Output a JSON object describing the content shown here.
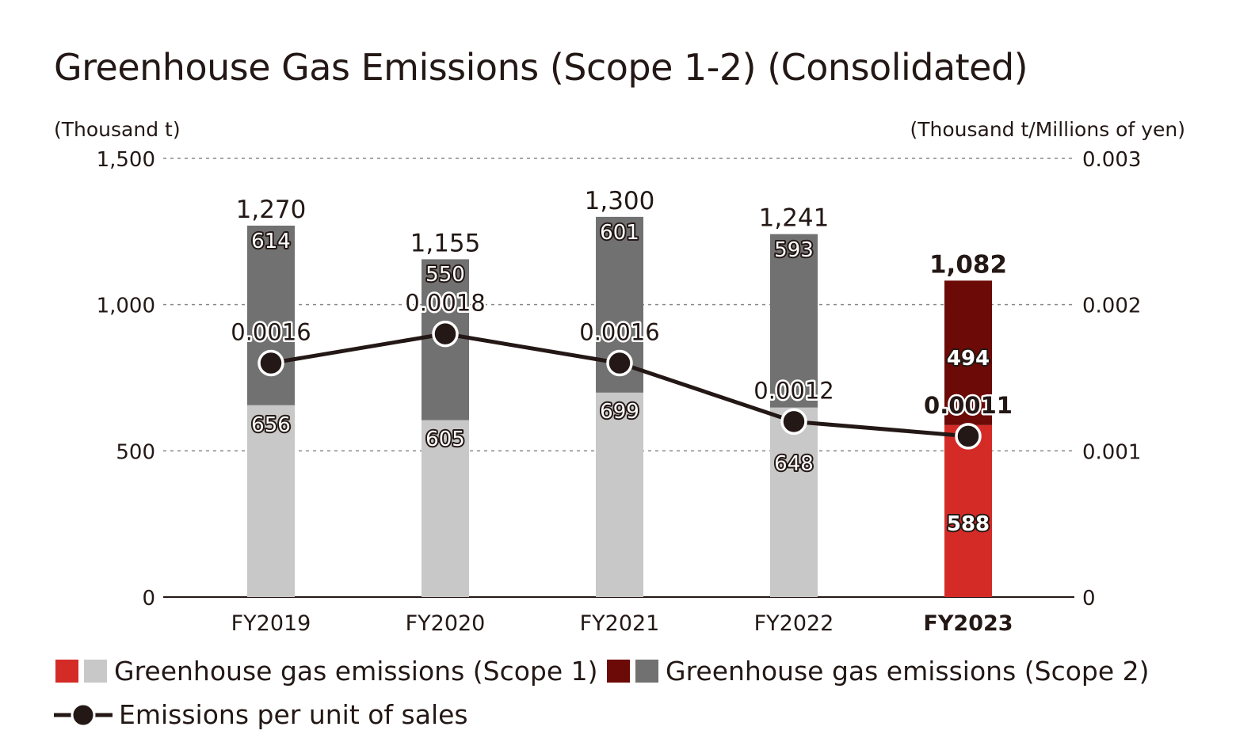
{
  "chart_data": {
    "type": "bar",
    "title": "Greenhouse Gas Emissions (Scope 1-2) (Consolidated)",
    "y_left_label": "(Thousand t)",
    "y_right_label": "(Thousand t/Millions of yen)",
    "ylim_left": [
      0,
      1500
    ],
    "ylim_right": [
      0,
      0.003
    ],
    "y_left_ticks": [
      "0",
      "500",
      "1,000",
      "1,500"
    ],
    "y_right_ticks": [
      "0",
      "0.001",
      "0.002",
      "0.003"
    ],
    "grid": "dashed horizontal",
    "categories": [
      "FY2019",
      "FY2020",
      "FY2021",
      "FY2022",
      "FY2023"
    ],
    "highlight_category": "FY2023",
    "series": [
      {
        "name": "Greenhouse gas emissions (Scope 1)",
        "kind": "stacked-bar",
        "axis": "left",
        "values": [
          656,
          605,
          699,
          648,
          588
        ],
        "value_labels": [
          "656",
          "605",
          "699",
          "648",
          "588"
        ]
      },
      {
        "name": "Greenhouse gas emissions (Scope 2)",
        "kind": "stacked-bar",
        "axis": "left",
        "values": [
          614,
          550,
          601,
          593,
          494
        ],
        "value_labels": [
          "614",
          "550",
          "601",
          "593",
          "494"
        ]
      },
      {
        "name": "Emissions per unit of sales",
        "kind": "line",
        "axis": "right",
        "values": [
          0.0016,
          0.0018,
          0.0016,
          0.0012,
          0.0011
        ],
        "value_labels": [
          "0.0016",
          "0.0018",
          "0.0016",
          "0.0012",
          "0.0011"
        ]
      }
    ],
    "totals": [
      1270,
      1155,
      1300,
      1241,
      1082
    ],
    "total_labels": [
      "1,270",
      "1,155",
      "1,300",
      "1,241",
      "1,082"
    ],
    "legend": {
      "placement": "bottom",
      "items": [
        {
          "label": "Greenhouse gas emissions (Scope 1)",
          "colors": [
            "#d52b27",
            "#c8c8c8"
          ]
        },
        {
          "label": "Greenhouse gas emissions (Scope 2)",
          "colors": [
            "#6b0a06",
            "#727171"
          ]
        },
        {
          "label": "Emissions per unit of sales",
          "colors": [
            "#231815"
          ]
        }
      ]
    },
    "colors": {
      "scope1": "#c8c8c8",
      "scope2": "#727171",
      "scope1_highlight": "#d52b27",
      "scope2_highlight": "#6b0a06",
      "line": "#231815",
      "grid": "#888888"
    }
  }
}
